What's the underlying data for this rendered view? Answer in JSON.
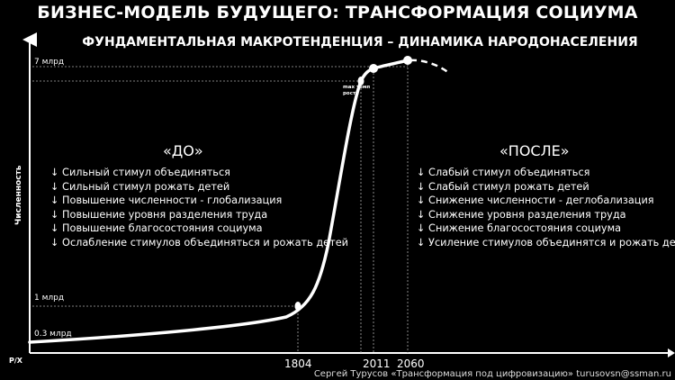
{
  "title": "БИЗНЕС-МОДЕЛЬ БУДУЩЕГО: ТРАНСФОРМАЦИЯ СОЦИУМА",
  "subtitle": "ФУНДАМЕНТАЛЬНАЯ МАКРОТЕНДЕНЦИЯ – ДИНАМИКА НАРОДОНАСЕЛЕНИЯ",
  "before": {
    "heading": "«ДО»",
    "items": [
      "↓ Сильный стимул объединяться",
      "↓ Сильный стимул рожать детей",
      "↓ Повышение численности - глобализация",
      "↓ Повышение уровня разделения труда",
      "↓ Повышение благосостояния социума",
      "↓ Ослабление стимулов объединяться и рожать детей"
    ]
  },
  "after": {
    "heading": "«ПОСЛЕ»",
    "items": [
      "↓ Слабый стимул объединяться",
      "↓ Слабый стимул рожать детей",
      "↓ Снижение численности - деглобализация",
      "↓ Снижение уровня разделения труда",
      "↓ Снижение благосостояния социума",
      "↓ Усиление стимулов объединятся и рожать детей"
    ]
  },
  "footer": "Сергей Турусов «Трансформация под цифровизацию» turusovsn@ssman.ru",
  "chart_data": {
    "type": "line",
    "ylabel": "Численность",
    "xlabel": "P/X",
    "x_ticks": [
      "1804",
      "2011",
      "2060"
    ],
    "y_ticks": [
      "0.3 млрд",
      "1 млрд",
      "7 млрд"
    ],
    "annotation": "max темп роста",
    "points": [
      {
        "x": "1804",
        "y": 1.0
      },
      {
        "x": "2011",
        "y": 7.0
      },
      {
        "x": "2060",
        "y": 7.7
      }
    ],
    "projection": "dashed decline after 2060",
    "grid": false,
    "line_color": "#ffffff",
    "background": "#000000"
  }
}
